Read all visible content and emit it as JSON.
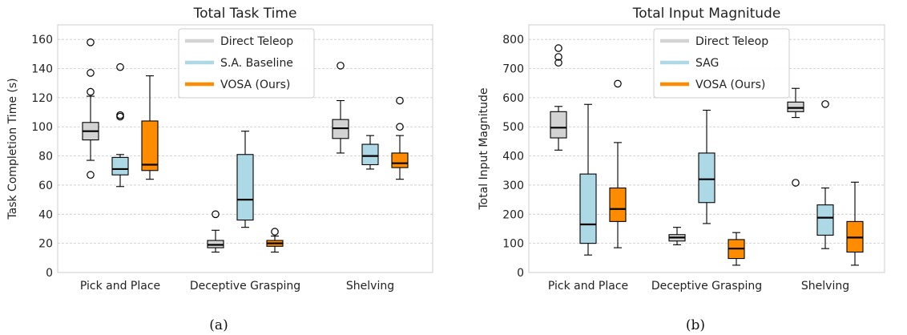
{
  "chart_data": [
    {
      "type": "box",
      "panel_id": "a",
      "title": "Total Task Time",
      "caption": "(a)",
      "xlabel": "",
      "ylabel": "Task Completion Time (s)",
      "ylim": [
        0,
        170
      ],
      "yticks": [
        0,
        20,
        40,
        60,
        80,
        100,
        120,
        140,
        160
      ],
      "grid": true,
      "legend_position": "top-center",
      "categories": [
        "Pick and Place",
        "Deceptive Grasping",
        "Shelving"
      ],
      "series": [
        {
          "name": "Direct Teleop",
          "color": "#d3d3d3",
          "boxes": [
            {
              "whisker_low": 77,
              "q1": 91,
              "median": 97,
              "q3": 103,
              "whisker_high": 121,
              "outliers": [
                67,
                124,
                137,
                158
              ]
            },
            {
              "whisker_low": 14,
              "q1": 17,
              "median": 19,
              "q3": 22,
              "whisker_high": 29,
              "outliers": [
                40
              ]
            },
            {
              "whisker_low": 82,
              "q1": 92,
              "median": 99,
              "q3": 105,
              "whisker_high": 118,
              "outliers": [
                142
              ]
            }
          ]
        },
        {
          "name": "S.A. Baseline",
          "color": "#add8e6",
          "boxes": [
            {
              "whisker_low": 59,
              "q1": 67,
              "median": 71,
              "q3": 79,
              "whisker_high": 81,
              "outliers": [
                107,
                108,
                141
              ]
            },
            {
              "whisker_low": 31,
              "q1": 36,
              "median": 50,
              "q3": 81,
              "whisker_high": 97,
              "outliers": []
            },
            {
              "whisker_low": 71,
              "q1": 74,
              "median": 80,
              "q3": 88,
              "whisker_high": 94,
              "outliers": []
            }
          ]
        },
        {
          "name": "VOSA (Ours)",
          "color": "#ff8c00",
          "boxes": [
            {
              "whisker_low": 64,
              "q1": 70,
              "median": 74,
              "q3": 104,
              "whisker_high": 135,
              "outliers": []
            },
            {
              "whisker_low": 14,
              "q1": 18,
              "median": 20,
              "q3": 22,
              "whisker_high": 25,
              "outliers": [
                28
              ]
            },
            {
              "whisker_low": 64,
              "q1": 72,
              "median": 75,
              "q3": 82,
              "whisker_high": 94,
              "outliers": [
                100,
                118
              ]
            }
          ]
        }
      ]
    },
    {
      "type": "box",
      "panel_id": "b",
      "title": "Total Input Magnitude",
      "caption": "(b)",
      "xlabel": "",
      "ylabel": "Total Input Magnitude",
      "ylim": [
        0,
        850
      ],
      "yticks": [
        0,
        100,
        200,
        300,
        400,
        500,
        600,
        700,
        800
      ],
      "grid": true,
      "legend_position": "top-center",
      "categories": [
        "Pick and Place",
        "Deceptive Grasping",
        "Shelving"
      ],
      "series": [
        {
          "name": "Direct Teleop",
          "color": "#d3d3d3",
          "boxes": [
            {
              "whisker_low": 420,
              "q1": 462,
              "median": 497,
              "q3": 552,
              "whisker_high": 570,
              "outliers": [
                720,
                740,
                770
              ]
            },
            {
              "whisker_low": 95,
              "q1": 108,
              "median": 120,
              "q3": 130,
              "whisker_high": 155,
              "outliers": []
            },
            {
              "whisker_low": 532,
              "q1": 552,
              "median": 565,
              "q3": 585,
              "whisker_high": 632,
              "outliers": [
                308
              ]
            }
          ]
        },
        {
          "name": "SAG",
          "color": "#add8e6",
          "boxes": [
            {
              "whisker_low": 60,
              "q1": 100,
              "median": 165,
              "q3": 338,
              "whisker_high": 577,
              "outliers": []
            },
            {
              "whisker_low": 168,
              "q1": 240,
              "median": 320,
              "q3": 410,
              "whisker_high": 557,
              "outliers": []
            },
            {
              "whisker_low": 82,
              "q1": 128,
              "median": 188,
              "q3": 232,
              "whisker_high": 290,
              "outliers": [
                578
              ]
            }
          ]
        },
        {
          "name": "VOSA (Ours)",
          "color": "#ff8c00",
          "boxes": [
            {
              "whisker_low": 85,
              "q1": 175,
              "median": 218,
              "q3": 290,
              "whisker_high": 446,
              "outliers": [
                648
              ]
            },
            {
              "whisker_low": 25,
              "q1": 48,
              "median": 82,
              "q3": 113,
              "whisker_high": 137,
              "outliers": []
            },
            {
              "whisker_low": 25,
              "q1": 70,
              "median": 120,
              "q3": 175,
              "whisker_high": 310,
              "outliers": []
            }
          ]
        }
      ]
    }
  ]
}
